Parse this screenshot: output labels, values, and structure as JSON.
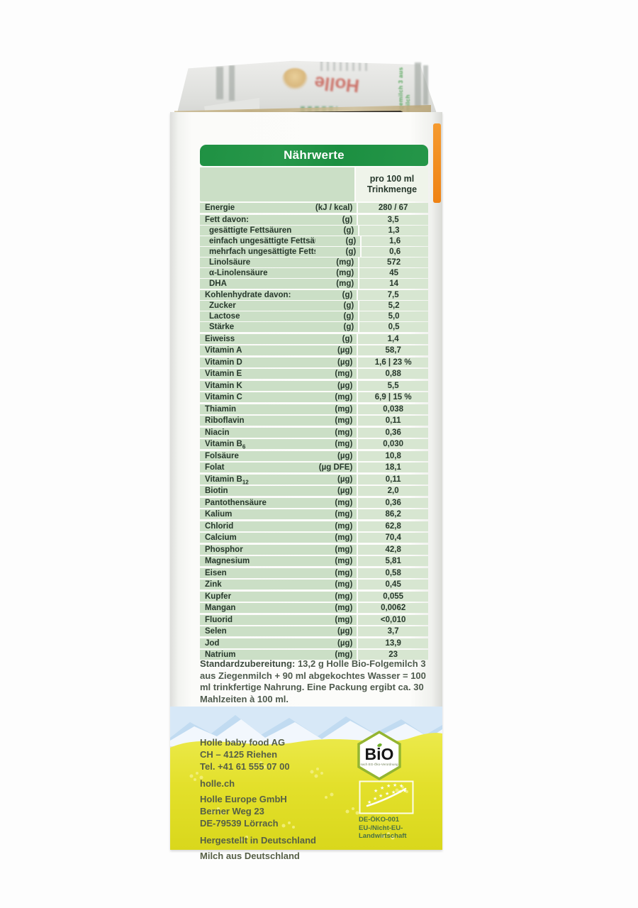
{
  "product": {
    "brand": "Holle",
    "flap_side_text": "Bio-Folgemilch 3 aus Ziegenmilch"
  },
  "table": {
    "title": "Nährwerte",
    "column_header_line1": "pro 100 ml",
    "column_header_line2": "Trinkmenge",
    "rows": [
      {
        "label": "Energie",
        "unit": "(kJ / kcal)",
        "value": "280 / 67",
        "sep": "none",
        "indent": false
      },
      {
        "label": "Fett davon:",
        "unit": "(g)",
        "value": "3,5",
        "sep": "thick",
        "indent": false
      },
      {
        "label": "gesättigte Fettsäuren",
        "unit": "(g)",
        "value": "1,3",
        "sep": "thin",
        "indent": true
      },
      {
        "label": "einfach ungesättigte Fettsäuren",
        "unit": "(g)",
        "value": "1,6",
        "sep": "thin",
        "indent": true
      },
      {
        "label": "mehrfach ungesättigte Fettsäuren",
        "unit": "(g)",
        "value": "0,6",
        "sep": "thin",
        "indent": true
      },
      {
        "label": "Linolsäure",
        "unit": "(mg)",
        "value": "572",
        "sep": "thin",
        "indent": true
      },
      {
        "label": "α-Linolensäure",
        "unit": "(mg)",
        "value": "45",
        "sep": "thin",
        "indent": true
      },
      {
        "label": "DHA",
        "unit": "(mg)",
        "value": "14",
        "sep": "thin",
        "indent": true
      },
      {
        "label": "Kohlenhydrate davon:",
        "unit": "(g)",
        "value": "7,5",
        "sep": "thick",
        "indent": false
      },
      {
        "label": "Zucker",
        "unit": "(g)",
        "value": "5,2",
        "sep": "thin",
        "indent": true
      },
      {
        "label": "Lactose",
        "unit": "(g)",
        "value": "5,0",
        "sep": "thin",
        "indent": true
      },
      {
        "label": "Stärke",
        "unit": "(g)",
        "value": "0,5",
        "sep": "thin",
        "indent": true
      },
      {
        "label": "Eiweiss",
        "unit": "(g)",
        "value": "1,4",
        "sep": "thick",
        "indent": false
      },
      {
        "label": "Vitamin A",
        "unit": "(µg)",
        "value": "58,7",
        "sep": "thick",
        "indent": false
      },
      {
        "label": "Vitamin D",
        "unit": "(µg)",
        "value": "1,6 | 23 %",
        "sep": "thick",
        "indent": false
      },
      {
        "label": "Vitamin E",
        "unit": "(mg)",
        "value": "0,88",
        "sep": "thick",
        "indent": false
      },
      {
        "label": "Vitamin K",
        "unit": "(µg)",
        "value": "5,5",
        "sep": "thick",
        "indent": false
      },
      {
        "label": "Vitamin C",
        "unit": "(mg)",
        "value": "6,9 | 15 %",
        "sep": "thick",
        "indent": false
      },
      {
        "label": "Thiamin",
        "unit": "(mg)",
        "value": "0,038",
        "sep": "thick",
        "indent": false
      },
      {
        "label": "Riboflavin",
        "unit": "(mg)",
        "value": "0,11",
        "sep": "thick",
        "indent": false
      },
      {
        "label": "Niacin",
        "unit": "(mg)",
        "value": "0,36",
        "sep": "thick",
        "indent": false
      },
      {
        "label": "Vitamin B",
        "label_sub": "6",
        "unit": "(mg)",
        "value": "0,030",
        "sep": "thick",
        "indent": false
      },
      {
        "label": "Folsäure",
        "unit": "(µg)",
        "value": "10,8",
        "sep": "thick",
        "indent": false
      },
      {
        "label": "Folat",
        "unit": "(µg DFE)",
        "value": "18,1",
        "sep": "thick",
        "indent": false
      },
      {
        "label": "Vitamin B",
        "label_sub": "12",
        "unit": "(µg)",
        "value": "0,11",
        "sep": "thick",
        "indent": false
      },
      {
        "label": "Biotin",
        "unit": "(µg)",
        "value": "2,0",
        "sep": "thick",
        "indent": false
      },
      {
        "label": "Pantothensäure",
        "unit": "(mg)",
        "value": "0,36",
        "sep": "thick",
        "indent": false
      },
      {
        "label": "Kalium",
        "unit": "(mg)",
        "value": "86,2",
        "sep": "thick",
        "indent": false
      },
      {
        "label": "Chlorid",
        "unit": "(mg)",
        "value": "62,8",
        "sep": "thick",
        "indent": false
      },
      {
        "label": "Calcium",
        "unit": "(mg)",
        "value": "70,4",
        "sep": "thick",
        "indent": false
      },
      {
        "label": "Phosphor",
        "unit": "(mg)",
        "value": "42,8",
        "sep": "thick",
        "indent": false
      },
      {
        "label": "Magnesium",
        "unit": "(mg)",
        "value": "5,81",
        "sep": "thick",
        "indent": false
      },
      {
        "label": "Eisen",
        "unit": "(mg)",
        "value": "0,58",
        "sep": "thick",
        "indent": false
      },
      {
        "label": "Zink",
        "unit": "(mg)",
        "value": "0,45",
        "sep": "thick",
        "indent": false
      },
      {
        "label": "Kupfer",
        "unit": "(mg)",
        "value": "0,055",
        "sep": "thick",
        "indent": false
      },
      {
        "label": "Mangan",
        "unit": "(mg)",
        "value": "0,0062",
        "sep": "thick",
        "indent": false
      },
      {
        "label": "Fluorid",
        "unit": "(mg)",
        "value": "<0,010",
        "sep": "thick",
        "indent": false
      },
      {
        "label": "Selen",
        "unit": "(µg)",
        "value": "3,7",
        "sep": "thick",
        "indent": false
      },
      {
        "label": "Jod",
        "unit": "(µg)",
        "value": "13,9",
        "sep": "thick",
        "indent": false
      },
      {
        "label": "Natrium",
        "unit": "(mg)",
        "value": "23",
        "sep": "thick",
        "indent": false
      }
    ]
  },
  "preparation": {
    "label": "Standardzubereitung:",
    "text": " 13,2 g Holle Bio-Folgemilch 3 aus Ziegenmilch + 90 ml abgekochtes Wasser = 100 ml trinkfertige Nahrung. Eine Packung ergibt ca. 30 Mahlzeiten à 100 ml."
  },
  "footer": {
    "address1": [
      "Holle baby food AG",
      "CH – 4125 Riehen",
      "Tel. +41 61 555 07 00"
    ],
    "website": "holle.ch",
    "address2": [
      "Holle Europe GmbH",
      "Berner Weg 23",
      "DE-79539 Lörrach"
    ],
    "made_in": "Hergestellt in Deutschland",
    "milk_origin": "Milch aus Deutschland",
    "bio_logo_text": "BiO",
    "bio_logo_sub": "nach EG-Öko-Verordnung",
    "eco_codes": [
      "DE-ÖKO-001",
      "EU-/Nicht-EU-",
      "Landwirtschaft"
    ]
  },
  "colors": {
    "table_header_green": "#1f9143",
    "table_row_green": "#cbdfc6",
    "table_value_green": "#d7e6d1",
    "meadow_yellow": "#e5e02e",
    "sky_blue": "#d7e8f7",
    "orange_edge": "#ef8214",
    "text_dark_green": "#27382c"
  }
}
